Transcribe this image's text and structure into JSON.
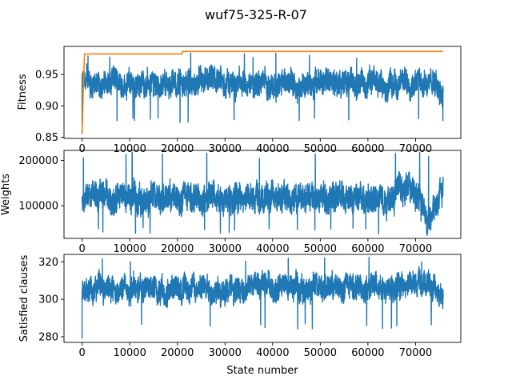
{
  "figure": {
    "title": "wuf75-325-R-07",
    "colors": {
      "blue": "#1f77b4",
      "orange": "#ff7f0e"
    }
  },
  "chart_data": [
    {
      "type": "line",
      "title": "",
      "xlabel": "",
      "ylabel": "Fitness",
      "xlim": [
        -3800,
        79500
      ],
      "ylim": [
        0.848,
        0.995
      ],
      "xticks": [
        0,
        10000,
        20000,
        30000,
        40000,
        50000,
        60000,
        70000
      ],
      "xtick_labels": [
        "0",
        "10000",
        "20000",
        "30000",
        "40000",
        "50000",
        "60000",
        "70000"
      ],
      "yticks": [
        0.85,
        0.9,
        0.95
      ],
      "ytick_labels": [
        "0.85",
        "0.90",
        "0.95"
      ],
      "series": [
        {
          "color": "#1f77b4",
          "style": "noisy",
          "x_range": [
            0,
            75800
          ],
          "base": 0.936,
          "amplitude": 0.018,
          "spike_low": 0.872,
          "spike_high": 0.985,
          "start_values": [
            0.855,
            0.935
          ],
          "end_trend": [
            [
              60000,
              0.936
            ],
            [
              66000,
              0.934
            ],
            [
              72000,
              0.942
            ],
            [
              75800,
              0.925
            ]
          ]
        },
        {
          "color": "#ff7f0e",
          "style": "step",
          "points": [
            [
              0,
              0.855
            ],
            [
              300,
              0.936
            ],
            [
              500,
              0.983
            ],
            [
              21000,
              0.983
            ],
            [
              21000,
              0.986
            ],
            [
              21200,
              0.987
            ],
            [
              75800,
              0.987
            ]
          ]
        }
      ]
    },
    {
      "type": "line",
      "title": "",
      "xlabel": "",
      "ylabel": "Weights",
      "xlim": [
        -3800,
        79500
      ],
      "ylim": [
        28000,
        222000
      ],
      "xticks": [
        0,
        10000,
        20000,
        30000,
        40000,
        50000,
        60000,
        70000
      ],
      "xtick_labels": [
        "0",
        "10000",
        "20000",
        "30000",
        "40000",
        "50000",
        "60000",
        "70000"
      ],
      "yticks": [
        100000,
        200000
      ],
      "ytick_labels": [
        "100000",
        "200000"
      ],
      "series": [
        {
          "color": "#1f77b4",
          "style": "noisy",
          "x_range": [
            0,
            75800
          ],
          "base": 115000,
          "amplitude": 28000,
          "spike_low": 38000,
          "spike_high": 218000,
          "spike_high_at": 10500,
          "end_trend": [
            [
              64000,
              118000
            ],
            [
              69000,
              150000
            ],
            [
              71500,
              95000
            ],
            [
              73000,
              70000
            ],
            [
              75800,
              145000
            ]
          ]
        }
      ]
    },
    {
      "type": "line",
      "title": "",
      "xlabel": "State number",
      "ylabel": "Satisfied clauses",
      "xlim": [
        -3800,
        79500
      ],
      "ylim": [
        277,
        324
      ],
      "xticks": [
        0,
        10000,
        20000,
        30000,
        40000,
        50000,
        60000,
        70000
      ],
      "xtick_labels": [
        "0",
        "10000",
        "20000",
        "30000",
        "40000",
        "50000",
        "60000",
        "70000"
      ],
      "yticks": [
        280,
        300,
        320
      ],
      "ytick_labels": [
        "280",
        "300",
        "320"
      ],
      "series": [
        {
          "color": "#1f77b4",
          "style": "noisy",
          "x_range": [
            0,
            75800
          ],
          "base": 306,
          "amplitude": 6,
          "spike_low": 284,
          "spike_high": 323,
          "start_values": [
            279,
            305
          ],
          "end_trend": [
            [
              65000,
              306
            ],
            [
              72000,
              309
            ],
            [
              75800,
              300
            ]
          ]
        }
      ]
    }
  ]
}
